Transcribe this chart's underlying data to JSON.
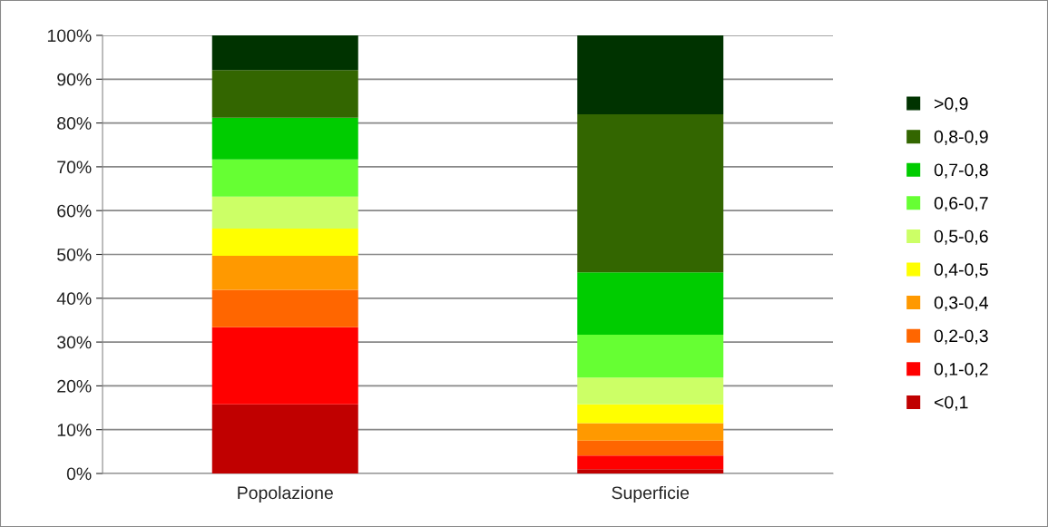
{
  "chart_data": {
    "type": "bar",
    "stacked": true,
    "categories": [
      "Popolazione",
      "Superficie"
    ],
    "series": [
      {
        "name": "<0,1",
        "color": "#c00000",
        "values": [
          15.8,
          1.0
        ]
      },
      {
        "name": "0,1-0,2",
        "color": "#ff0000",
        "values": [
          17.6,
          3.1
        ]
      },
      {
        "name": "0,2-0,3",
        "color": "#ff6600",
        "values": [
          8.5,
          3.4
        ]
      },
      {
        "name": "0,3-0,4",
        "color": "#ff9900",
        "values": [
          7.8,
          4.0
        ]
      },
      {
        "name": "0,4-0,5",
        "color": "#ffff00",
        "values": [
          6.2,
          4.3
        ]
      },
      {
        "name": "0,5-0,6",
        "color": "#ccff66",
        "values": [
          7.3,
          6.1
        ]
      },
      {
        "name": "0,6-0,7",
        "color": "#66ff33",
        "values": [
          8.5,
          9.8
        ]
      },
      {
        "name": "0,7-0,8",
        "color": "#00cc00",
        "values": [
          9.5,
          14.2
        ]
      },
      {
        "name": "0,8-0,9",
        "color": "#336600",
        "values": [
          10.9,
          36.1
        ]
      },
      {
        "name": ">0,9",
        "color": "#003300",
        "values": [
          7.9,
          18.0
        ]
      }
    ],
    "ylim": [
      0,
      100
    ],
    "yticks": [
      {
        "value": 0,
        "label": "0%"
      },
      {
        "value": 10,
        "label": "10%"
      },
      {
        "value": 20,
        "label": "20%"
      },
      {
        "value": 30,
        "label": "30%"
      },
      {
        "value": 40,
        "label": "40%"
      },
      {
        "value": 50,
        "label": "50%"
      },
      {
        "value": 60,
        "label": "60%"
      },
      {
        "value": 70,
        "label": "70%"
      },
      {
        "value": 80,
        "label": "80%"
      },
      {
        "value": 90,
        "label": "90%"
      },
      {
        "value": 100,
        "label": "100%"
      }
    ],
    "grid": "y",
    "legend": "right"
  }
}
